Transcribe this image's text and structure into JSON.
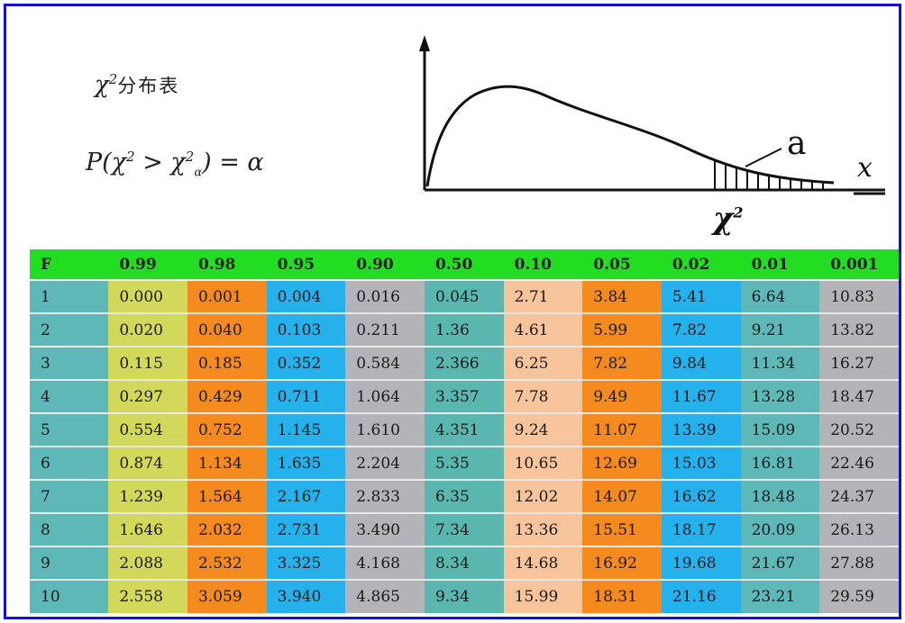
{
  "title": {
    "symbol": "χ",
    "sup": "2",
    "text": "分布表"
  },
  "formula": {
    "p": "P(χ",
    "sup1": "2",
    "gt": " > χ",
    "sup2": "2",
    "sub": "α",
    "rest": ") = α"
  },
  "curve": {
    "label_a": "a",
    "label_x": "x",
    "label_chi": "χ",
    "label_chi_sup": "2"
  },
  "table": {
    "headers": [
      "F",
      "0.99",
      "0.98",
      "0.95",
      "0.90",
      "0.50",
      "0.10",
      "0.05",
      "0.02",
      "0.01",
      "0.001"
    ],
    "rows": [
      [
        "1",
        "0.000",
        "0.001",
        "0.004",
        "0.016",
        "0.045",
        "2.71",
        "3.84",
        "5.41",
        "6.64",
        "10.83"
      ],
      [
        "2",
        "0.020",
        "0.040",
        "0.103",
        "0.211",
        "1.36",
        "4.61",
        "5.99",
        "7.82",
        "9.21",
        "13.82"
      ],
      [
        "3",
        "0.115",
        "0.185",
        "0.352",
        "0.584",
        "2.366",
        "6.25",
        "7.82",
        "9.84",
        "11.34",
        "16.27"
      ],
      [
        "4",
        "0.297",
        "0.429",
        "0.711",
        "1.064",
        "3.357",
        "7.78",
        "9.49",
        "11.67",
        "13.28",
        "18.47"
      ],
      [
        "5",
        "0.554",
        "0.752",
        "1.145",
        "1.610",
        "4.351",
        "9.24",
        "11.07",
        "13.39",
        "15.09",
        "20.52"
      ],
      [
        "6",
        "0.874",
        "1.134",
        "1.635",
        "2.204",
        "5.35",
        "10.65",
        "12.69",
        "15.03",
        "16.81",
        "22.46"
      ],
      [
        "7",
        "1.239",
        "1.564",
        "2.167",
        "2.833",
        "6.35",
        "12.02",
        "14.07",
        "16.62",
        "18.48",
        "24.37"
      ],
      [
        "8",
        "1.646",
        "2.032",
        "2.731",
        "3.490",
        "7.34",
        "13.36",
        "15.51",
        "18.17",
        "20.09",
        "26.13"
      ],
      [
        "9",
        "2.088",
        "2.532",
        "3.325",
        "4.168",
        "8.34",
        "14.68",
        "16.92",
        "19.68",
        "21.67",
        "27.88"
      ],
      [
        "10",
        "2.558",
        "3.059",
        "3.940",
        "4.865",
        "9.34",
        "15.99",
        "18.31",
        "21.16",
        "23.21",
        "29.59"
      ]
    ]
  },
  "colors": {
    "frame": "#1010d8",
    "header": "#22dd22",
    "columns": [
      "#5fb8b8",
      "#d2d85a",
      "#f58a1e",
      "#25b2ec",
      "#b4b4b8",
      "#5ab7b0",
      "#f8c49c",
      "#f58a1e",
      "#25b2ec",
      "#5fb8b8",
      "#b4b4b8"
    ]
  }
}
